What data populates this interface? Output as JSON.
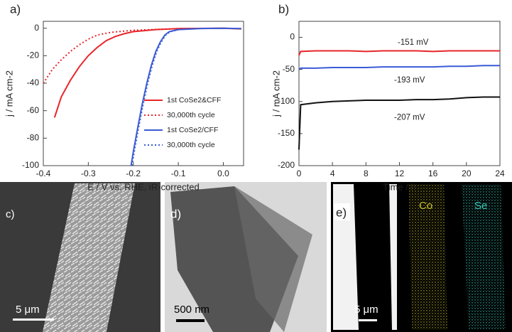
{
  "chart_data": [
    {
      "type": "line",
      "label": "a)",
      "x_label": "E / V vs. RHE, iR-corrected",
      "y_label": "j / mA cm-2",
      "xlim": [
        -0.4,
        0.045
      ],
      "xticks": [
        -0.4,
        -0.3,
        -0.2,
        -0.1,
        {
          "value": 0,
          "label": "0.0"
        }
      ],
      "ylim": [
        -100,
        5
      ],
      "yticks": [
        -100,
        -80,
        -60,
        -40,
        -20,
        0
      ],
      "legend": "lower right",
      "series": [
        {
          "name": "1st CoSe2&CFF",
          "color": "#e8262a",
          "dash": false,
          "x": [
            -0.375,
            -0.36,
            -0.34,
            -0.32,
            -0.3,
            -0.28,
            -0.26,
            -0.24,
            -0.22,
            -0.2,
            -0.15,
            -0.1,
            0,
            0.04
          ],
          "values": [
            -65,
            -50,
            -38,
            -28,
            -20,
            -14,
            -9,
            -6,
            -4,
            -2.5,
            -1,
            -0.3,
            0,
            -0.5
          ]
        },
        {
          "name": "30,000th cycle",
          "color": "#e8262a",
          "dash": true,
          "x": [
            -0.4,
            -0.38,
            -0.36,
            -0.34,
            -0.32,
            -0.3,
            -0.28,
            -0.25,
            -0.2,
            -0.1,
            0,
            0.04
          ],
          "values": [
            -40,
            -30,
            -23,
            -17,
            -12,
            -8,
            -5,
            -3,
            -1.5,
            -0.3,
            0,
            -0.5
          ]
        },
        {
          "name": "1st CoSe2/CFF",
          "color": "#3b5bd6",
          "dash": false,
          "x": [
            -0.205,
            -0.2,
            -0.19,
            -0.18,
            -0.17,
            -0.16,
            -0.15,
            -0.14,
            -0.13,
            -0.12,
            -0.1,
            -0.05,
            0,
            0.04
          ],
          "values": [
            -100,
            -90,
            -72,
            -55,
            -40,
            -27,
            -17,
            -10,
            -5,
            -2.5,
            -1,
            -0.2,
            0,
            -0.3
          ]
        },
        {
          "name": "30,000th cycle",
          "color": "#3b5bd6",
          "dash": true,
          "x": [
            -0.203,
            -0.198,
            -0.188,
            -0.178,
            -0.168,
            -0.158,
            -0.148,
            -0.138,
            -0.128,
            -0.118,
            -0.1,
            -0.05,
            0,
            0.04
          ],
          "values": [
            -100,
            -90,
            -72,
            -55,
            -40,
            -27,
            -17,
            -10,
            -5,
            -2.5,
            -1,
            -0.2,
            0,
            -0.3
          ]
        }
      ]
    },
    {
      "type": "line",
      "label": "b)",
      "x_label": "Time / h",
      "y_label": "j / mA cm-2",
      "xlim": [
        0,
        24
      ],
      "xticks": [
        0,
        4,
        8,
        12,
        16,
        20,
        24
      ],
      "ylim": [
        -200,
        25
      ],
      "yticks": [
        -200,
        -150,
        -100,
        -50,
        0
      ],
      "series": [
        {
          "color": "#e8262a",
          "annotation": "-151 mV",
          "x": [
            0,
            0.2,
            2,
            4,
            6,
            8,
            10,
            12,
            14,
            16,
            18,
            20,
            22,
            24
          ],
          "values": [
            -28,
            -22,
            -21,
            -21,
            -21,
            -22,
            -21,
            -21,
            -21,
            -22,
            -21,
            -21,
            -21,
            -21
          ]
        },
        {
          "color": "#3b5bd6",
          "annotation": "-193 mV",
          "x": [
            0,
            0.2,
            2,
            4,
            6,
            8,
            10,
            12,
            14,
            16,
            18,
            20,
            22,
            24
          ],
          "values": [
            -50,
            -48,
            -48,
            -47,
            -47,
            -47,
            -46,
            -46,
            -46,
            -46,
            -45,
            -45,
            -44,
            -44
          ]
        },
        {
          "color": "#111111",
          "annotation": "-207 mV",
          "x": [
            0,
            0.2,
            2,
            4,
            6,
            8,
            10,
            12,
            14,
            16,
            18,
            20,
            22,
            24
          ],
          "values": [
            -175,
            -105,
            -102,
            -100,
            -99,
            -98,
            -98,
            -98,
            -97,
            -97,
            -96,
            -94,
            -93,
            -93
          ]
        }
      ]
    }
  ],
  "panels": {
    "c": {
      "label": "c)",
      "scale": "5 μm"
    },
    "d": {
      "label": "d)",
      "scale": "500 nm"
    },
    "e": {
      "label": "e)",
      "scale": "5 μm",
      "maps": [
        "Co",
        "Se"
      ]
    }
  }
}
